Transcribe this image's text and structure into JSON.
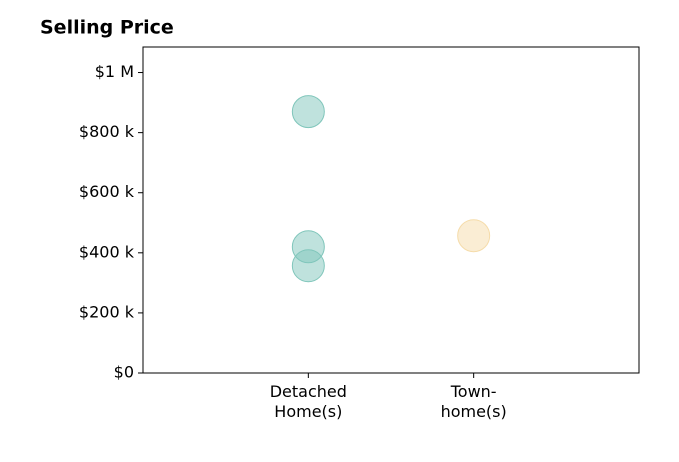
{
  "chart_data": {
    "type": "scatter",
    "title": "Selling Price",
    "xlim": [
      0,
      3
    ],
    "xticks": [
      {
        "value": 1,
        "label": "Detached\nHome(s)"
      },
      {
        "value": 2,
        "label": "Town-\nhome(s)"
      }
    ],
    "ylim": [
      0,
      1085000
    ],
    "yticks": [
      {
        "value": 0,
        "label": "$0"
      },
      {
        "value": 200000,
        "label": "$200 k"
      },
      {
        "value": 400000,
        "label": "$400 k"
      },
      {
        "value": 600000,
        "label": "$600 k"
      },
      {
        "value": 800000,
        "label": "$800 k"
      },
      {
        "value": 1000000,
        "label": "$1 M"
      }
    ],
    "series": [
      {
        "color": "#80c6bb",
        "x": [
          1,
          1,
          1
        ],
        "values": [
          870000,
          420000,
          357000
        ]
      },
      {
        "color": "#f5dcaa",
        "x": [
          2
        ],
        "values": [
          457000
        ]
      }
    ]
  }
}
